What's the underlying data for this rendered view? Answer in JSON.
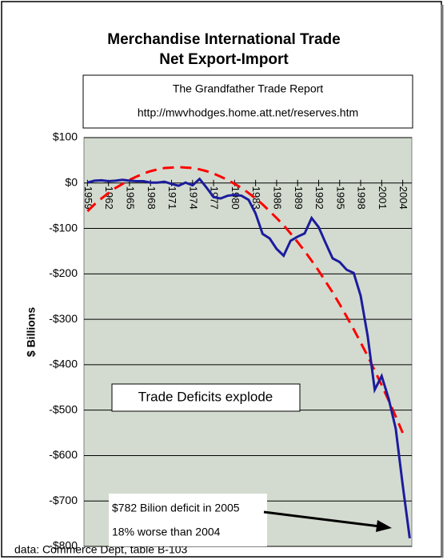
{
  "chart_data": {
    "type": "line",
    "title": [
      "Merchandise International Trade",
      "Net Export-Import"
    ],
    "subtitle": [
      "The Grandfather Trade Report",
      "http://mwvhodges.home.att.net/reserves.htm"
    ],
    "ylabel": "$ Billions",
    "annotations": [
      "Trade Deficits explode",
      "$782 Bilion deficit in 2005",
      "18% worse than 2004"
    ],
    "source": "data: Commerce Dept, table B-103",
    "x": [
      1959,
      1960,
      1961,
      1962,
      1963,
      1964,
      1965,
      1966,
      1967,
      1968,
      1969,
      1970,
      1971,
      1972,
      1973,
      1974,
      1975,
      1976,
      1977,
      1978,
      1979,
      1980,
      1981,
      1982,
      1983,
      1984,
      1985,
      1986,
      1987,
      1988,
      1989,
      1990,
      1991,
      1992,
      1993,
      1994,
      1995,
      1996,
      1997,
      1998,
      1999,
      2000,
      2001,
      2002,
      2003,
      2004,
      2005
    ],
    "series": [
      {
        "color": "#1c1c9c",
        "dashed": false,
        "values": [
          1,
          5,
          6,
          4,
          5,
          7,
          5,
          4,
          4,
          1,
          1,
          3,
          -2,
          -6,
          1,
          -5,
          9,
          -10,
          -31,
          -34,
          -28,
          -26,
          -28,
          -37,
          -67,
          -112,
          -122,
          -145,
          -160,
          -127,
          -118,
          -111,
          -77,
          -97,
          -132,
          -166,
          -174,
          -191,
          -198,
          -248,
          -337,
          -455,
          -425,
          -475,
          -541,
          -665,
          -782
        ]
      },
      {
        "color": "#ff0000",
        "dashed": true,
        "values": [
          -62,
          -47,
          -34,
          -22,
          -11,
          -2,
          7,
          14,
          21,
          26,
          30,
          33,
          34,
          35,
          34,
          33,
          30,
          26,
          21,
          14,
          7,
          -2,
          -11,
          -22,
          -34,
          -47,
          -62,
          -77,
          -93,
          -111,
          -130,
          -150,
          -171,
          -193,
          -217,
          -241,
          -267,
          -294,
          -322,
          -351,
          -381,
          -413,
          -445,
          -479,
          -514,
          -550,
          null
        ]
      }
    ],
    "xlim": [
      1958.5,
      2005.3
    ],
    "xticks": [
      1959,
      1962,
      1965,
      1968,
      1971,
      1974,
      1977,
      1980,
      1983,
      1986,
      1989,
      1992,
      1995,
      1998,
      2001,
      2004
    ],
    "ylim": [
      -800,
      100
    ],
    "yticks": [
      {
        "value": 100,
        "label": "$100"
      },
      {
        "value": 0,
        "label": "$0"
      },
      {
        "value": -100,
        "label": "-$100"
      },
      {
        "value": -200,
        "label": "-$200"
      },
      {
        "value": -300,
        "label": "-$300"
      },
      {
        "value": -400,
        "label": "-$400"
      },
      {
        "value": -500,
        "label": "-$500"
      },
      {
        "value": -600,
        "label": "-$600"
      },
      {
        "value": -700,
        "label": "-$700"
      },
      {
        "value": -800,
        "label": "-$800"
      }
    ],
    "grid": true,
    "plot_background": "#d3dbd0"
  }
}
